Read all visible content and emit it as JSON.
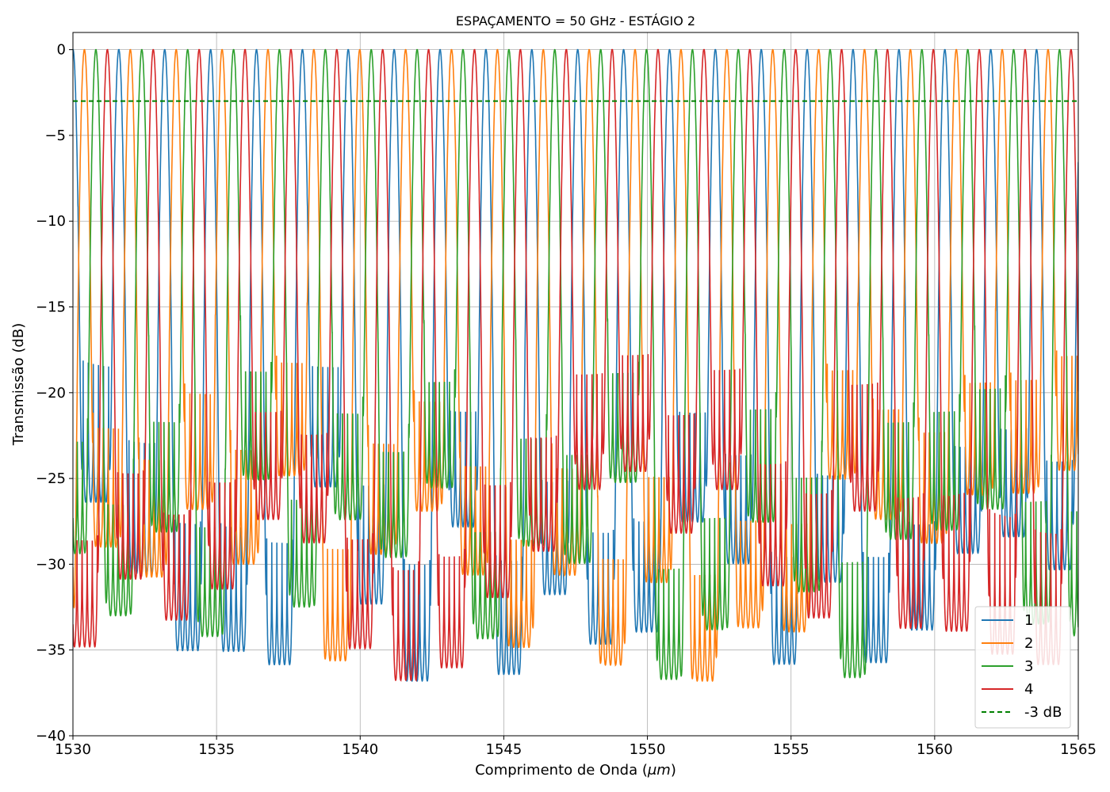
{
  "chart_data": {
    "type": "line",
    "title": "ESPAÇAMENTO = 50 GHz - ESTÁGIO 2",
    "xlabel_prefix": "Comprimento de Onda (",
    "xlabel_unit": "μm",
    "xlabel_suffix": ")",
    "ylabel": "Transmissão (dB)",
    "xlim": [
      1530,
      1565
    ],
    "ylim": [
      -40,
      1
    ],
    "xticks": [
      1530,
      1535,
      1540,
      1545,
      1550,
      1555,
      1560,
      1565
    ],
    "yticks": [
      0,
      -5,
      -10,
      -15,
      -20,
      -25,
      -30,
      -35,
      -40
    ],
    "xtick_labels": [
      "1530",
      "1535",
      "1540",
      "1545",
      "1550",
      "1555",
      "1560",
      "1565"
    ],
    "ytick_labels": [
      "0",
      "−5",
      "−10",
      "−15",
      "−20",
      "−25",
      "−30",
      "−35",
      "−40"
    ],
    "grid": true,
    "legend_position": "lower right",
    "channel_spacing_ghz": 50,
    "series": [
      {
        "name": "1",
        "color": "#1f77b4",
        "peak_db": 0,
        "channel_offset": 0
      },
      {
        "name": "2",
        "color": "#ff7f0e",
        "peak_db": 0,
        "channel_offset": 1
      },
      {
        "name": "3",
        "color": "#2ca02c",
        "peak_db": 0,
        "channel_offset": 2
      },
      {
        "name": "4",
        "color": "#d62728",
        "peak_db": 0,
        "channel_offset": 3
      },
      {
        "name": "-3 dB",
        "color": "#008000",
        "style": "dashed",
        "constant_db": -3
      }
    ]
  }
}
